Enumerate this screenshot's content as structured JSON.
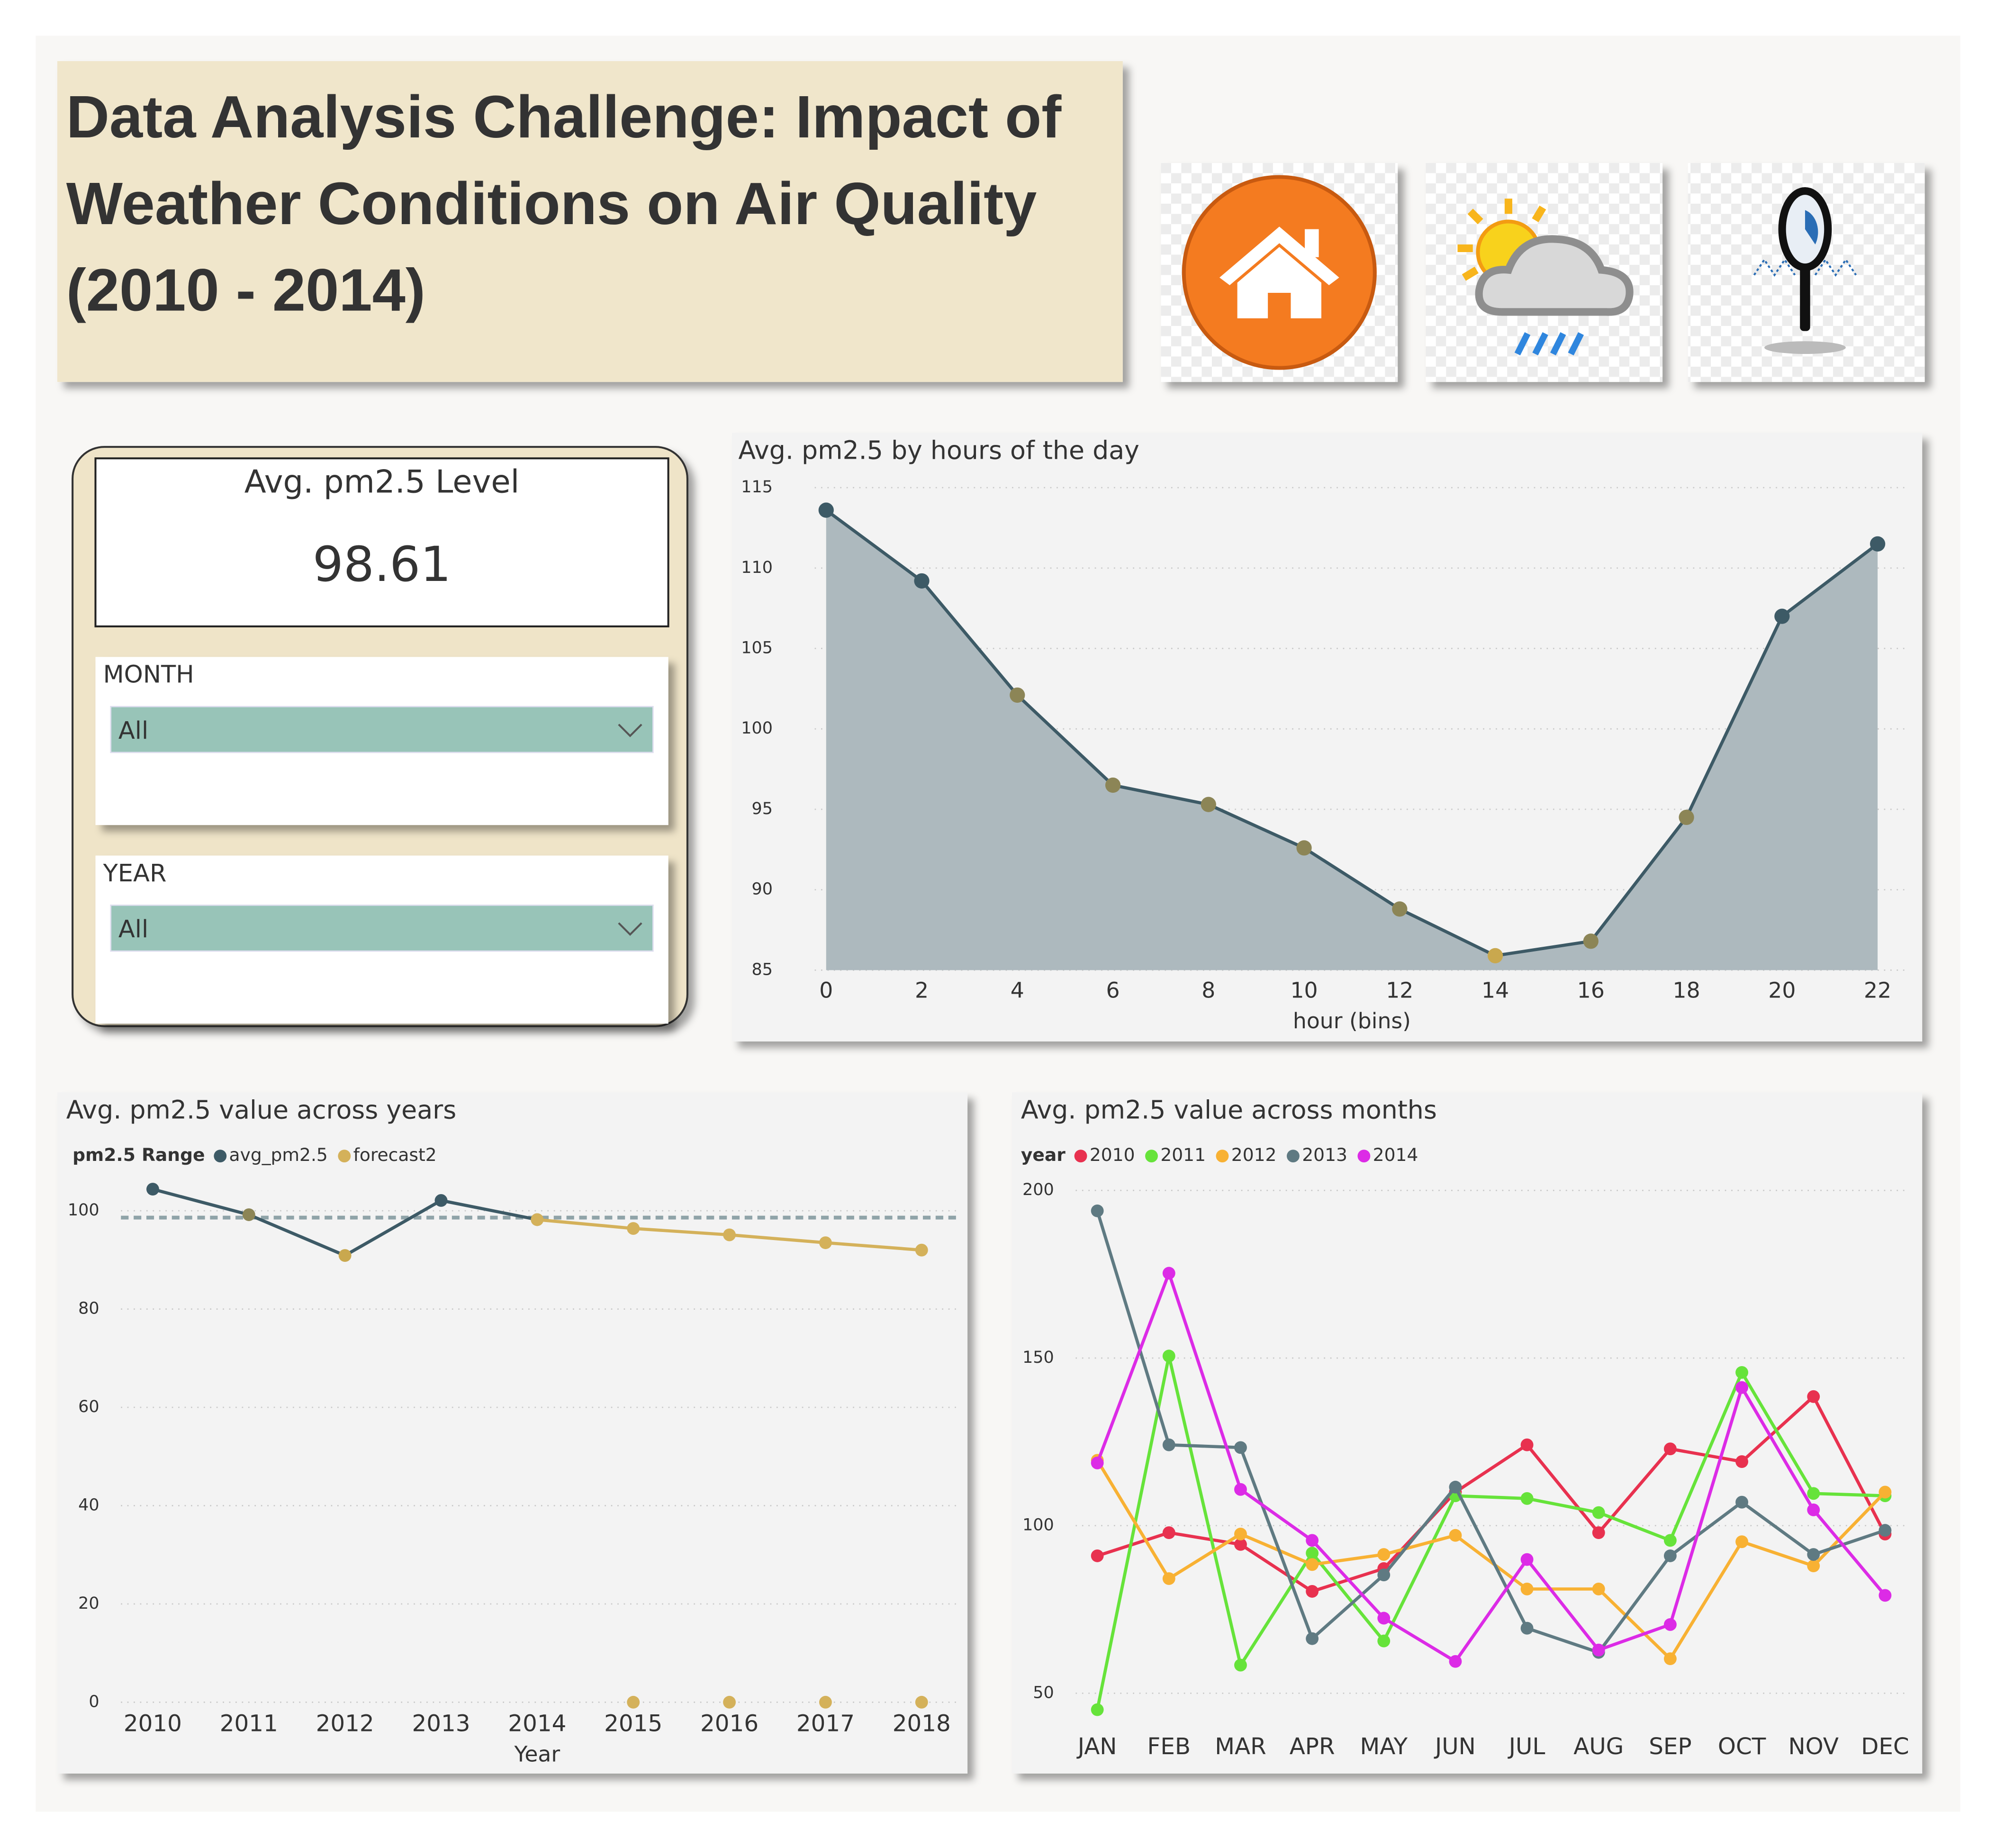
{
  "header": {
    "title": "Data Analysis Challenge: Impact of Weather Conditions on Air Quality (2010 - 2014)"
  },
  "kpi": {
    "label": "Avg. pm2.5 Level",
    "value": 98.61
  },
  "filters": [
    {
      "label": "MONTH",
      "value": "All"
    },
    {
      "label": "YEAR",
      "value": "All"
    }
  ],
  "chart_data": [
    {
      "type": "area",
      "title": "Avg. pm2.5 by hours of the day",
      "x_label": "hour (bins)",
      "x": [
        0,
        2,
        4,
        6,
        8,
        10,
        12,
        14,
        16,
        18,
        20,
        22
      ],
      "values": [
        113.6,
        109.2,
        102.1,
        96.5,
        95.3,
        92.6,
        88.8,
        85.9,
        86.8,
        94.5,
        107.0,
        111.5
      ],
      "color": "#3d5a66",
      "fill_color": "#adb9be",
      "marker_colors": [
        "#3d5a66",
        "#3d5a66",
        "#8c8556",
        "#8c8556",
        "#8c8556",
        "#8c8556",
        "#8c8556",
        "#c9a84e",
        "#8c8556",
        "#8c8556",
        "#3d5a66",
        "#3d5a66"
      ],
      "xlim": [
        0,
        22
      ],
      "xticks": [
        0,
        2,
        4,
        6,
        8,
        10,
        12,
        14,
        16,
        18,
        20,
        22
      ],
      "ylim": [
        85,
        115
      ],
      "yticks": [
        85,
        90,
        95,
        100,
        105,
        110,
        115
      ],
      "grid": true
    },
    {
      "type": "line",
      "title": "Avg. pm2.5 value across years",
      "x_label": "Year",
      "legend_title": "pm2.5 Range",
      "categories": [
        "2010",
        "2011",
        "2012",
        "2013",
        "2014",
        "2015",
        "2016",
        "2017",
        "2018"
      ],
      "series": [
        {
          "name": "avg_pm2.5",
          "color": "#3d5a66",
          "values": [
            104.4,
            99.2,
            90.9,
            102.1,
            98.2,
            null,
            null,
            null,
            null
          ],
          "marker_colors": [
            "#3d5a66",
            "#8c8556",
            "#c9a84e",
            "#3d5a66",
            "#8c8556"
          ]
        },
        {
          "name": "forecast2",
          "color": "#d4b15a",
          "values": [
            null,
            null,
            null,
            null,
            98.2,
            96.4,
            95.1,
            93.5,
            92.0
          ]
        },
        {
          "color": "#d4b15a",
          "markers_only": true,
          "values": [
            null,
            null,
            null,
            null,
            null,
            0,
            0,
            0,
            0
          ]
        }
      ],
      "average_line": 98.61,
      "ylim": [
        0,
        105
      ],
      "yticks": [
        0,
        20,
        40,
        60,
        80,
        100
      ],
      "grid": true
    },
    {
      "type": "line",
      "title": "Avg. pm2.5 value across months",
      "legend_title": "year",
      "categories": [
        "JAN",
        "FEB",
        "MAR",
        "APR",
        "MAY",
        "JUN",
        "JUL",
        "AUG",
        "SEP",
        "OCT",
        "NOV",
        "DEC"
      ],
      "series": [
        {
          "name": "2010",
          "color": "#e8314f",
          "values": [
            91.0,
            97.9,
            94.4,
            80.4,
            87.2,
            110.0,
            124.1,
            97.9,
            122.9,
            119.1,
            138.5,
            97.5
          ]
        },
        {
          "name": "2011",
          "color": "#66e33a",
          "values": [
            45.1,
            150.6,
            58.4,
            91.8,
            65.6,
            108.9,
            108.1,
            103.9,
            95.6,
            145.7,
            109.6,
            108.9
          ]
        },
        {
          "name": "2012",
          "color": "#f8b133",
          "values": [
            119.5,
            84.2,
            97.5,
            88.4,
            91.4,
            97.1,
            81.1,
            81.1,
            60.3,
            95.2,
            88.0,
            110.0
          ]
        },
        {
          "name": "2013",
          "color": "#5f7a82",
          "values": [
            193.9,
            124.1,
            123.3,
            66.3,
            85.3,
            111.5,
            69.4,
            62.2,
            91.0,
            107.0,
            91.4,
            98.6
          ]
        },
        {
          "name": "2014",
          "color": "#dc2be6",
          "values": [
            118.7,
            175.3,
            110.8,
            95.6,
            72.4,
            59.5,
            89.9,
            62.9,
            70.5,
            141.2,
            104.7,
            79.2
          ]
        }
      ],
      "ylim": [
        40,
        200
      ],
      "yticks": [
        50,
        100,
        150,
        200
      ],
      "grid": true
    }
  ]
}
